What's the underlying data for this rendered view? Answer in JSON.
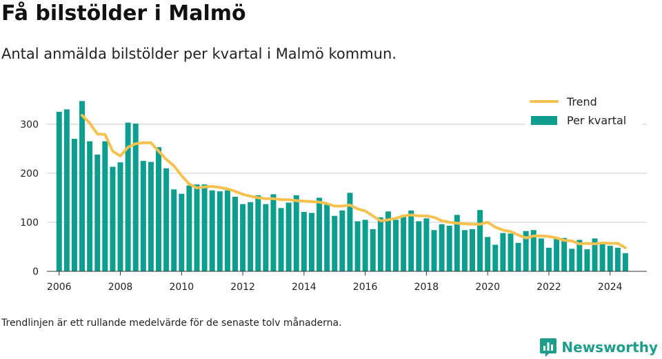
{
  "header": {
    "title": "Få bilstölder i Malmö",
    "subtitle": "Antal anmälda bilstölder per kvartal i Malmö kommun."
  },
  "footer": {
    "note": "Trendlinjen är ett rullande medelvärde för de senaste tolv månaderna.",
    "brand": "Newsworthy"
  },
  "colors": {
    "bar": "#0e9e90",
    "trend": "#f6c24f",
    "grid": "#dddddd",
    "brand": "#1e9c8c"
  },
  "chart_data": {
    "type": "bar",
    "title": "Få bilstölder i Malmö",
    "subtitle": "Antal anmälda bilstölder per kvartal i Malmö kommun.",
    "xlabel": "",
    "ylabel": "",
    "ylim": [
      0,
      370
    ],
    "xlim": [
      2005.6,
      2025.2
    ],
    "grid": true,
    "legend_position": "top-right",
    "xticks": [
      2006,
      2008,
      2010,
      2012,
      2014,
      2016,
      2018,
      2020,
      2022,
      2024
    ],
    "yticks": [
      0,
      100,
      200,
      300
    ],
    "series": [
      {
        "name": "Per kvartal",
        "type": "bar",
        "color": "#0e9e90",
        "x": [
          2006.0,
          2006.25,
          2006.5,
          2006.75,
          2007.0,
          2007.25,
          2007.5,
          2007.75,
          2008.0,
          2008.25,
          2008.5,
          2008.75,
          2009.0,
          2009.25,
          2009.5,
          2009.75,
          2010.0,
          2010.25,
          2010.5,
          2010.75,
          2011.0,
          2011.25,
          2011.5,
          2011.75,
          2012.0,
          2012.25,
          2012.5,
          2012.75,
          2013.0,
          2013.25,
          2013.5,
          2013.75,
          2014.0,
          2014.25,
          2014.5,
          2014.75,
          2015.0,
          2015.25,
          2015.5,
          2015.75,
          2016.0,
          2016.25,
          2016.5,
          2016.75,
          2017.0,
          2017.25,
          2017.5,
          2017.75,
          2018.0,
          2018.25,
          2018.5,
          2018.75,
          2019.0,
          2019.25,
          2019.5,
          2019.75,
          2020.0,
          2020.25,
          2020.5,
          2020.75,
          2021.0,
          2021.25,
          2021.5,
          2021.75,
          2022.0,
          2022.25,
          2022.5,
          2022.75,
          2023.0,
          2023.25,
          2023.5,
          2023.75,
          2024.0,
          2024.25,
          2024.5
        ],
        "values": [
          325,
          330,
          270,
          347,
          265,
          238,
          265,
          213,
          222,
          303,
          301,
          225,
          223,
          253,
          210,
          167,
          158,
          175,
          177,
          177,
          165,
          163,
          165,
          152,
          137,
          141,
          155,
          137,
          157,
          129,
          140,
          155,
          121,
          119,
          150,
          138,
          113,
          124,
          160,
          102,
          105,
          86,
          110,
          122,
          105,
          113,
          124,
          102,
          108,
          84,
          96,
          93,
          115,
          84,
          86,
          125,
          70,
          54,
          78,
          77,
          58,
          82,
          84,
          67,
          48,
          66,
          68,
          46,
          64,
          45,
          67,
          56,
          52,
          48,
          37
        ]
      },
      {
        "name": "Trend",
        "type": "line",
        "color": "#f6c24f",
        "x": [
          2006.75,
          2007.0,
          2007.25,
          2007.5,
          2007.75,
          2008.0,
          2008.25,
          2008.5,
          2008.75,
          2009.0,
          2009.25,
          2009.5,
          2009.75,
          2010.0,
          2010.25,
          2010.5,
          2010.75,
          2011.0,
          2011.25,
          2011.5,
          2011.75,
          2012.0,
          2012.25,
          2012.5,
          2012.75,
          2013.0,
          2013.25,
          2013.5,
          2013.75,
          2014.0,
          2014.25,
          2014.5,
          2014.75,
          2015.0,
          2015.25,
          2015.5,
          2015.75,
          2016.0,
          2016.25,
          2016.5,
          2016.75,
          2017.0,
          2017.25,
          2017.5,
          2017.75,
          2018.0,
          2018.25,
          2018.5,
          2018.75,
          2019.0,
          2019.25,
          2019.5,
          2019.75,
          2020.0,
          2020.25,
          2020.5,
          2020.75,
          2021.0,
          2021.25,
          2021.5,
          2021.75,
          2022.0,
          2022.25,
          2022.5,
          2022.75,
          2023.0,
          2023.25,
          2023.5,
          2023.75,
          2024.0,
          2024.25,
          2024.5
        ],
        "values": [
          318,
          302,
          280,
          279,
          245,
          235,
          253,
          260,
          262,
          262,
          245,
          228,
          215,
          195,
          178,
          170,
          172,
          173,
          171,
          168,
          163,
          157,
          153,
          150,
          148,
          148,
          146,
          146,
          144,
          143,
          142,
          141,
          138,
          133,
          133,
          135,
          127,
          123,
          113,
          103,
          105,
          108,
          113,
          115,
          113,
          113,
          110,
          103,
          100,
          98,
          97,
          96,
          96,
          100,
          90,
          84,
          81,
          74,
          68,
          72,
          72,
          71,
          68,
          63,
          62,
          56,
          57,
          56,
          58,
          57,
          57,
          48
        ]
      }
    ]
  }
}
